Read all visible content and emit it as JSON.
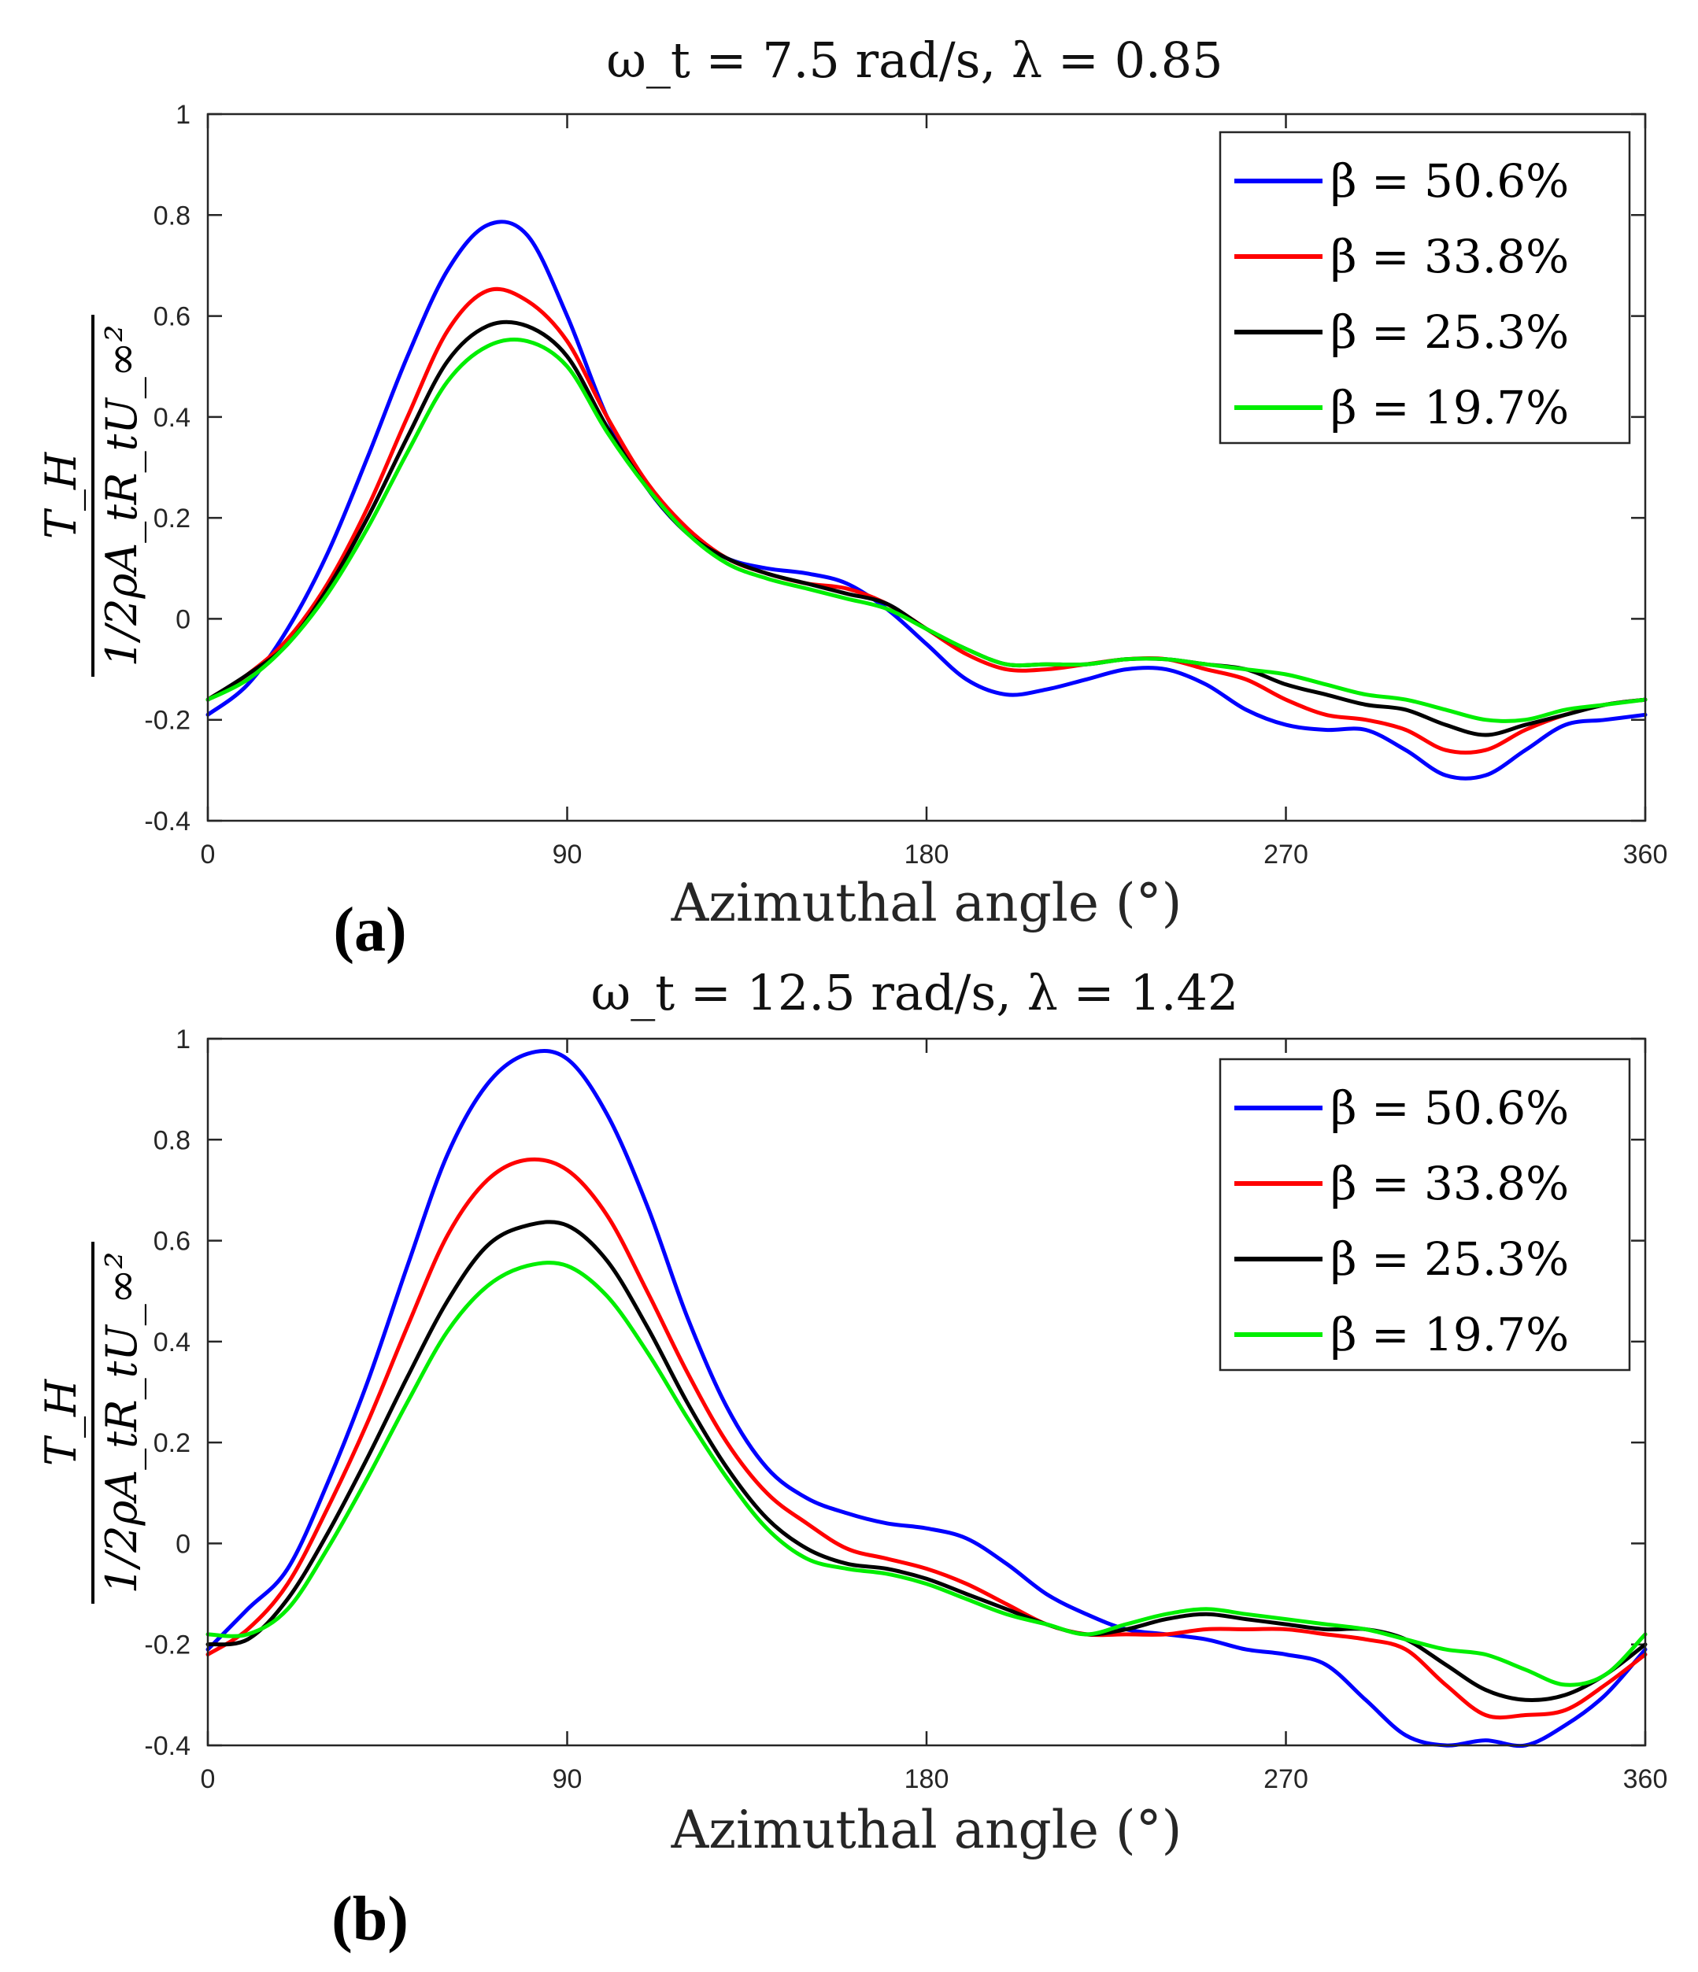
{
  "chart_data": [
    {
      "type": "line",
      "panel_label": "(a)",
      "title": "ω_t = 7.5 rad/s, λ = 0.85",
      "xlabel": "Azimuthal angle (°)",
      "ylabel_numerator": "T_H",
      "ylabel_denominator": "1/2ρA_tR_tU_∞²",
      "xlim": [
        0,
        360
      ],
      "ylim": [
        -0.4,
        1
      ],
      "xticks": [
        "0",
        "90",
        "180",
        "270",
        "360"
      ],
      "yticks": [
        "-0.4",
        "-0.2",
        "0",
        "0.2",
        "0.4",
        "0.6",
        "0.8",
        "1"
      ],
      "legend_position": "top-right",
      "x": [
        0,
        10,
        20,
        30,
        40,
        50,
        60,
        70,
        80,
        90,
        100,
        110,
        120,
        130,
        140,
        150,
        160,
        170,
        180,
        190,
        200,
        210,
        220,
        230,
        240,
        250,
        260,
        270,
        280,
        290,
        300,
        310,
        320,
        330,
        340,
        350,
        360
      ],
      "series": [
        {
          "name": "β = 50.6%",
          "color": "#0000ff",
          "values": [
            -0.19,
            -0.13,
            -0.02,
            0.13,
            0.32,
            0.52,
            0.69,
            0.78,
            0.76,
            0.6,
            0.4,
            0.26,
            0.17,
            0.12,
            0.1,
            0.09,
            0.07,
            0.02,
            -0.05,
            -0.12,
            -0.15,
            -0.14,
            -0.12,
            -0.1,
            -0.1,
            -0.13,
            -0.18,
            -0.21,
            -0.22,
            -0.22,
            -0.26,
            -0.31,
            -0.31,
            -0.26,
            -0.21,
            -0.2,
            -0.19
          ]
        },
        {
          "name": "β = 33.8%",
          "color": "#ff0000",
          "values": [
            -0.16,
            -0.11,
            -0.04,
            0.07,
            0.22,
            0.4,
            0.57,
            0.65,
            0.63,
            0.55,
            0.4,
            0.27,
            0.18,
            0.12,
            0.09,
            0.07,
            0.06,
            0.03,
            -0.02,
            -0.07,
            -0.1,
            -0.1,
            -0.09,
            -0.08,
            -0.08,
            -0.1,
            -0.12,
            -0.16,
            -0.19,
            -0.2,
            -0.22,
            -0.26,
            -0.26,
            -0.22,
            -0.19,
            -0.17,
            -0.16
          ]
        },
        {
          "name": "β = 25.3%",
          "color": "#000000",
          "values": [
            -0.16,
            -0.11,
            -0.05,
            0.06,
            0.2,
            0.36,
            0.51,
            0.58,
            0.58,
            0.52,
            0.38,
            0.26,
            0.17,
            0.12,
            0.09,
            0.07,
            0.05,
            0.03,
            -0.02,
            -0.06,
            -0.09,
            -0.09,
            -0.09,
            -0.08,
            -0.08,
            -0.09,
            -0.1,
            -0.13,
            -0.15,
            -0.17,
            -0.18,
            -0.21,
            -0.23,
            -0.21,
            -0.19,
            -0.17,
            -0.16
          ]
        },
        {
          "name": "β = 19.7%",
          "color": "#00ee00",
          "values": [
            -0.16,
            -0.12,
            -0.05,
            0.05,
            0.18,
            0.33,
            0.47,
            0.54,
            0.55,
            0.5,
            0.37,
            0.26,
            0.17,
            0.11,
            0.08,
            0.06,
            0.04,
            0.02,
            -0.02,
            -0.06,
            -0.09,
            -0.09,
            -0.09,
            -0.08,
            -0.08,
            -0.09,
            -0.1,
            -0.11,
            -0.13,
            -0.15,
            -0.16,
            -0.18,
            -0.2,
            -0.2,
            -0.18,
            -0.17,
            -0.16
          ]
        }
      ]
    },
    {
      "type": "line",
      "panel_label": "(b)",
      "title": "ω_t = 12.5 rad/s, λ = 1.42",
      "xlabel": "Azimuthal angle (°)",
      "ylabel_numerator": "T_H",
      "ylabel_denominator": "1/2ρA_tR_tU_∞²",
      "xlim": [
        0,
        360
      ],
      "ylim": [
        -0.4,
        1
      ],
      "xticks": [
        "0",
        "90",
        "180",
        "270",
        "360"
      ],
      "yticks": [
        "-0.4",
        "-0.2",
        "0",
        "0.2",
        "0.4",
        "0.6",
        "0.8",
        "1"
      ],
      "legend_position": "top-right",
      "x": [
        0,
        10,
        20,
        30,
        40,
        50,
        60,
        70,
        80,
        90,
        100,
        110,
        120,
        130,
        140,
        150,
        160,
        170,
        180,
        190,
        200,
        210,
        220,
        230,
        240,
        250,
        260,
        270,
        280,
        290,
        300,
        310,
        320,
        330,
        340,
        350,
        360
      ],
      "series": [
        {
          "name": "β = 50.6%",
          "color": "#0000ff",
          "values": [
            -0.21,
            -0.13,
            -0.05,
            0.12,
            0.32,
            0.55,
            0.77,
            0.91,
            0.97,
            0.96,
            0.85,
            0.67,
            0.45,
            0.27,
            0.15,
            0.09,
            0.06,
            0.04,
            0.03,
            0.01,
            -0.04,
            -0.1,
            -0.14,
            -0.17,
            -0.18,
            -0.19,
            -0.21,
            -0.22,
            -0.24,
            -0.31,
            -0.38,
            -0.4,
            -0.39,
            -0.4,
            -0.36,
            -0.3,
            -0.21
          ]
        },
        {
          "name": "β = 33.8%",
          "color": "#ff0000",
          "values": [
            -0.22,
            -0.17,
            -0.08,
            0.07,
            0.24,
            0.43,
            0.61,
            0.72,
            0.76,
            0.74,
            0.65,
            0.5,
            0.34,
            0.2,
            0.1,
            0.04,
            -0.01,
            -0.03,
            -0.05,
            -0.08,
            -0.12,
            -0.16,
            -0.18,
            -0.18,
            -0.18,
            -0.17,
            -0.17,
            -0.17,
            -0.18,
            -0.19,
            -0.21,
            -0.28,
            -0.34,
            -0.34,
            -0.33,
            -0.28,
            -0.22
          ]
        },
        {
          "name": "β = 25.3%",
          "color": "#000000",
          "values": [
            -0.2,
            -0.19,
            -0.11,
            0.02,
            0.17,
            0.33,
            0.48,
            0.59,
            0.63,
            0.63,
            0.56,
            0.43,
            0.28,
            0.15,
            0.05,
            -0.01,
            -0.04,
            -0.05,
            -0.07,
            -0.1,
            -0.13,
            -0.16,
            -0.18,
            -0.17,
            -0.15,
            -0.14,
            -0.15,
            -0.16,
            -0.17,
            -0.17,
            -0.19,
            -0.24,
            -0.29,
            -0.31,
            -0.3,
            -0.26,
            -0.2
          ]
        },
        {
          "name": "β = 19.7%",
          "color": "#00ee00",
          "values": [
            -0.18,
            -0.18,
            -0.13,
            -0.01,
            0.13,
            0.28,
            0.42,
            0.51,
            0.55,
            0.55,
            0.49,
            0.38,
            0.25,
            0.13,
            0.03,
            -0.03,
            -0.05,
            -0.06,
            -0.08,
            -0.11,
            -0.14,
            -0.16,
            -0.18,
            -0.16,
            -0.14,
            -0.13,
            -0.14,
            -0.15,
            -0.16,
            -0.17,
            -0.19,
            -0.21,
            -0.22,
            -0.25,
            -0.28,
            -0.26,
            -0.18
          ]
        }
      ]
    }
  ]
}
